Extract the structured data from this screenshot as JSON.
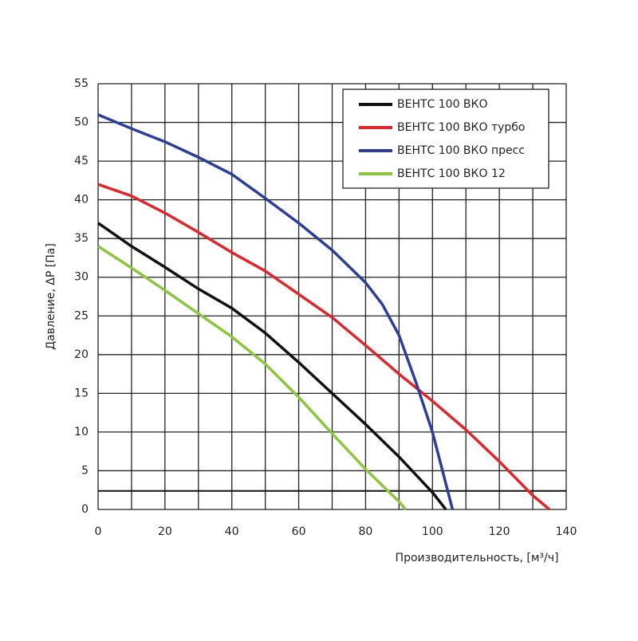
{
  "chart_data": {
    "type": "line",
    "y_label": "Давление, ΔP [Па]",
    "x_label": "Производительность, [м³/ч]",
    "xlim": [
      0,
      140
    ],
    "xticks": [
      0,
      20,
      40,
      60,
      80,
      100,
      120,
      140
    ],
    "xgrid": [
      10,
      30,
      50,
      70,
      90,
      110,
      130
    ],
    "ylim": [
      0,
      55
    ],
    "yticks": [
      0,
      5,
      10,
      15,
      20,
      25,
      30,
      35,
      40,
      45,
      50,
      55
    ],
    "grid": true,
    "legend": "upper right",
    "hline": {
      "value": 2.4,
      "color": "#111111"
    },
    "series": [
      {
        "name": "ВЕНТС 100 ВКО",
        "color": "#111111",
        "x": [
          0,
          10,
          20,
          30,
          40,
          50,
          60,
          70,
          80,
          90,
          100,
          104
        ],
        "values": [
          37,
          34,
          31.3,
          28.5,
          26,
          22.8,
          19,
          15,
          11,
          6.8,
          2.2,
          0
        ]
      },
      {
        "name": "ВЕНТС 100 ВКО турбо",
        "color": "#e0262a",
        "x": [
          0,
          10,
          20,
          30,
          40,
          50,
          60,
          70,
          80,
          90,
          100,
          110,
          120,
          130,
          135
        ],
        "values": [
          42,
          40.5,
          38.3,
          35.8,
          33.2,
          30.8,
          27.8,
          24.8,
          21.2,
          17.5,
          14,
          10.3,
          6.2,
          1.8,
          0
        ]
      },
      {
        "name": "ВЕНТС 100 ВКО пресс",
        "color": "#2a3e9a",
        "x": [
          0,
          10,
          20,
          30,
          40,
          50,
          60,
          70,
          80,
          85,
          90,
          95,
          100,
          103,
          106
        ],
        "values": [
          51,
          49.2,
          47.5,
          45.5,
          43.3,
          40.2,
          37,
          33.5,
          29.3,
          26.5,
          22.5,
          16.5,
          10,
          5,
          0
        ]
      },
      {
        "name": "ВЕНТС 100 ВКО 12",
        "color": "#8cc63f",
        "x": [
          0,
          10,
          20,
          30,
          40,
          50,
          60,
          70,
          80,
          90,
          92
        ],
        "values": [
          34,
          31.2,
          28.3,
          25.3,
          22.3,
          18.8,
          14.5,
          9.8,
          5.2,
          1,
          0
        ]
      }
    ]
  }
}
